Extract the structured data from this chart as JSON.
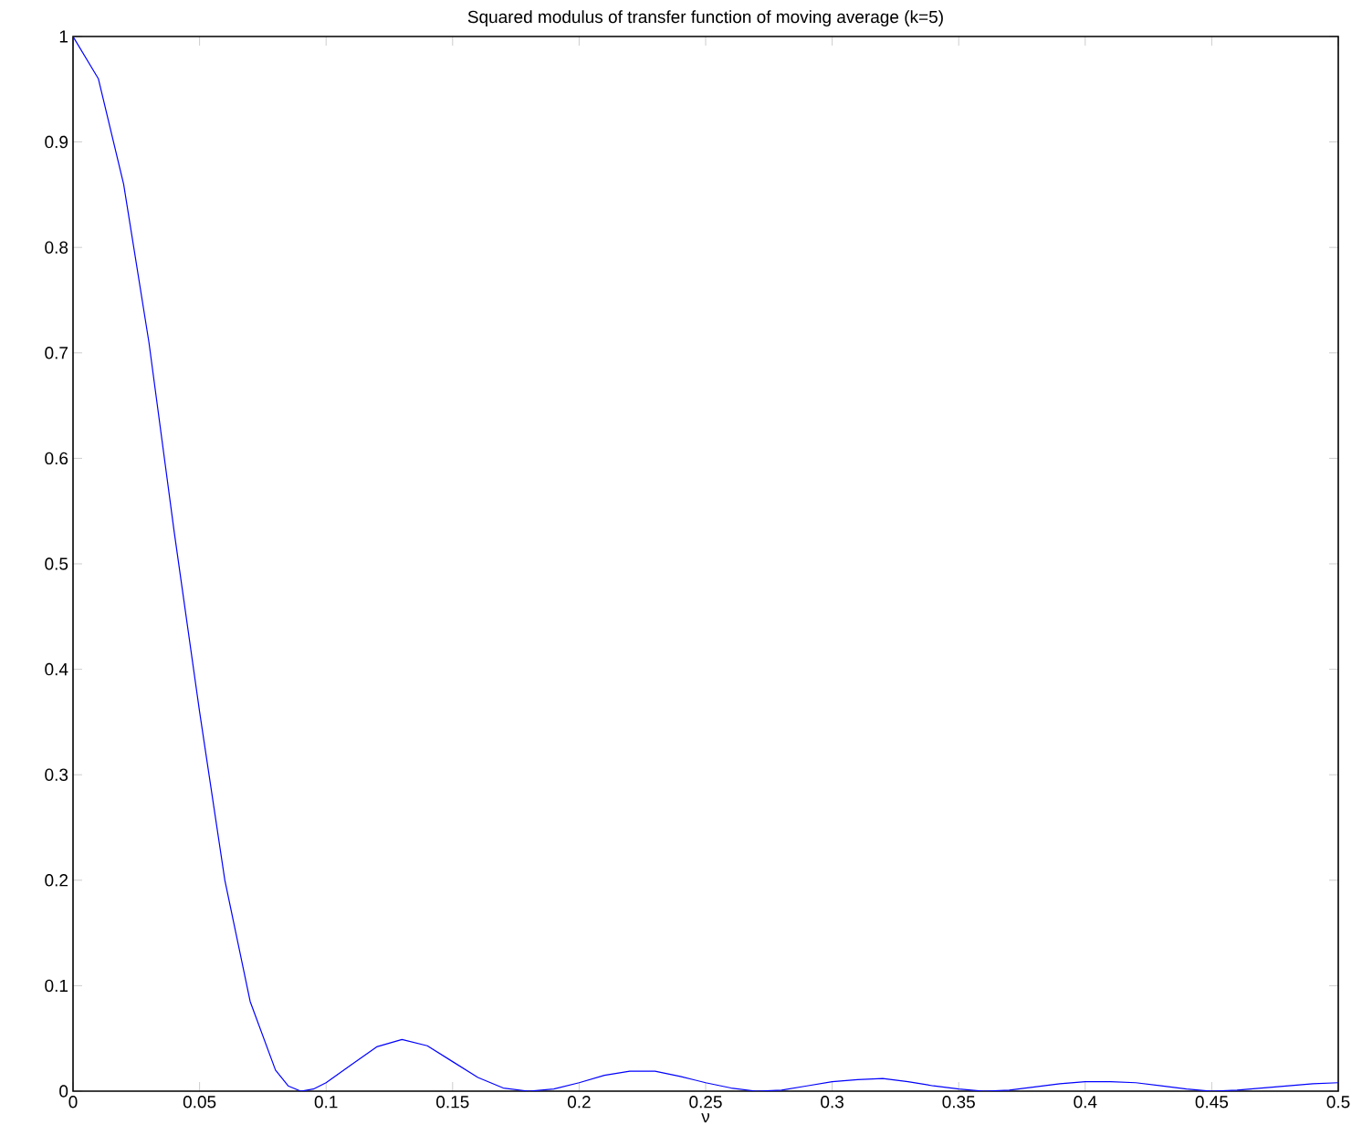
{
  "chart_data": {
    "type": "line",
    "title": "Squared modulus of transfer function of moving average (k=5)",
    "xlabel": "ν",
    "x": [
      0,
      0.01,
      0.02,
      0.03,
      0.04,
      0.05,
      0.06,
      0.07,
      0.08,
      0.085,
      0.09,
      0.095,
      0.1,
      0.11,
      0.12,
      0.13,
      0.14,
      0.15,
      0.16,
      0.17,
      0.18,
      0.19,
      0.2,
      0.21,
      0.22,
      0.23,
      0.24,
      0.25,
      0.26,
      0.27,
      0.28,
      0.29,
      0.3,
      0.31,
      0.32,
      0.33,
      0.34,
      0.35,
      0.36,
      0.37,
      0.38,
      0.39,
      0.4,
      0.41,
      0.42,
      0.43,
      0.44,
      0.45,
      0.46,
      0.47,
      0.48,
      0.49,
      0.5
    ],
    "series": [
      {
        "color": "#0000ff",
        "values": [
          1,
          0.96,
          0.86,
          0.71,
          0.53,
          0.36,
          0.2,
          0.085,
          0.02,
          0.005,
          0,
          0.002,
          0.008,
          0.025,
          0.042,
          0.049,
          0.043,
          0.028,
          0.013,
          0.003,
          0,
          0.002,
          0.008,
          0.015,
          0.019,
          0.019,
          0.014,
          0.008,
          0.003,
          0,
          0.001,
          0.005,
          0.009,
          0.011,
          0.012,
          0.009,
          0.005,
          0.002,
          0,
          0.001,
          0.004,
          0.007,
          0.009,
          0.009,
          0.008,
          0.005,
          0.002,
          0,
          0.001,
          0.003,
          0.005,
          0.007,
          0.008
        ]
      }
    ],
    "xlim": [
      0,
      0.5
    ],
    "ylim": [
      0,
      1
    ],
    "xticks": [
      0,
      0.05,
      0.1,
      0.15,
      0.2,
      0.25,
      0.3,
      0.35,
      0.4,
      0.45,
      0.5
    ],
    "yticks": [
      0,
      0.1,
      0.2,
      0.3,
      0.4,
      0.5,
      0.6,
      0.7,
      0.8,
      0.9,
      1
    ],
    "grid": false,
    "marker": "none",
    "line_style": "solid"
  }
}
